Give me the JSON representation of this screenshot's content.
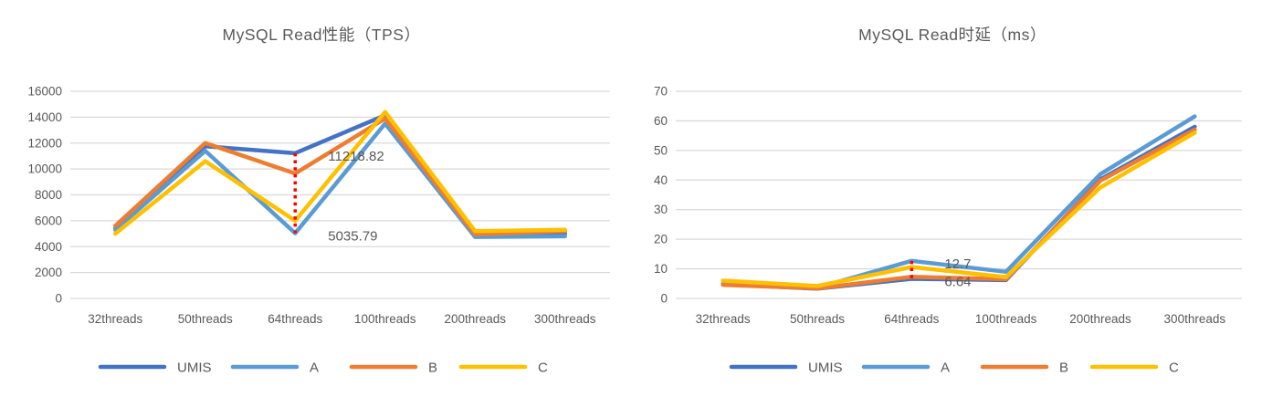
{
  "styles": {
    "background": "#FFFFFF",
    "grid_color": "#D9D9D9",
    "axis_text_color": "#595959",
    "title_color": "#595959",
    "annotation_text_color": "#595959",
    "connector_color": "#FF0000",
    "series_colors": {
      "UMIS": "#4472C4",
      "A": "#5B9BD5",
      "B": "#ED7D31",
      "C": "#FFC000"
    }
  },
  "chart_data": [
    {
      "type": "line",
      "title": "MySQL Read性能（TPS）",
      "categories": [
        "32threads",
        "50threads",
        "64threads",
        "100threads",
        "200threads",
        "300threads"
      ],
      "series": [
        {
          "name": "UMIS",
          "color": "#4472C4",
          "values": [
            5400,
            11750,
            11218.82,
            14150,
            4850,
            5000
          ]
        },
        {
          "name": "A",
          "color": "#5B9BD5",
          "values": [
            5300,
            11400,
            5035.79,
            13500,
            4750,
            4800
          ]
        },
        {
          "name": "B",
          "color": "#ED7D31",
          "values": [
            5600,
            12000,
            9650,
            13900,
            4950,
            5200
          ]
        },
        {
          "name": "C",
          "color": "#FFC000",
          "values": [
            5000,
            10600,
            6000,
            14400,
            5200,
            5300
          ]
        }
      ],
      "ylim": [
        0,
        16000
      ],
      "ytick_step": 2000,
      "ytick_labels": [
        "0",
        "2000",
        "4000",
        "6000",
        "8000",
        "10000",
        "12000",
        "14000",
        "16000"
      ],
      "grid": true,
      "legend_position": "bottom",
      "annotations": [
        {
          "text": "11218.82",
          "series": "UMIS",
          "category_index": 2
        },
        {
          "text": "5035.79",
          "series": "A",
          "category_index": 2
        }
      ],
      "connector": {
        "category_index": 2,
        "from_series": "UMIS",
        "to_series": "A",
        "color": "#FF0000",
        "style": "dotted"
      }
    },
    {
      "type": "line",
      "title": "MySQL Read时延（ms）",
      "categories": [
        "32threads",
        "50threads",
        "64threads",
        "100threads",
        "200threads",
        "300threads"
      ],
      "series": [
        {
          "name": "UMIS",
          "color": "#4472C4",
          "values": [
            4.8,
            3.3,
            6.64,
            6.2,
            40.2,
            58
          ]
        },
        {
          "name": "A",
          "color": "#5B9BD5",
          "values": [
            5.0,
            3.6,
            12.7,
            9.0,
            42,
            61.5
          ]
        },
        {
          "name": "B",
          "color": "#ED7D31",
          "values": [
            4.6,
            3.4,
            7.3,
            6.5,
            39.8,
            57
          ]
        },
        {
          "name": "C",
          "color": "#FFC000",
          "values": [
            6.0,
            4.2,
            10.6,
            7.2,
            37.5,
            56
          ]
        }
      ],
      "ylim": [
        0,
        70
      ],
      "ytick_step": 10,
      "ytick_labels": [
        "0",
        "10",
        "20",
        "30",
        "40",
        "50",
        "60",
        "70"
      ],
      "grid": true,
      "legend_position": "bottom",
      "annotations": [
        {
          "text": "12.7",
          "series": "A",
          "category_index": 2
        },
        {
          "text": "6.64",
          "series": "UMIS",
          "category_index": 2
        }
      ],
      "connector": {
        "category_index": 2,
        "from_series": "A",
        "to_series": "UMIS",
        "color": "#FF0000",
        "style": "dotted"
      }
    }
  ]
}
